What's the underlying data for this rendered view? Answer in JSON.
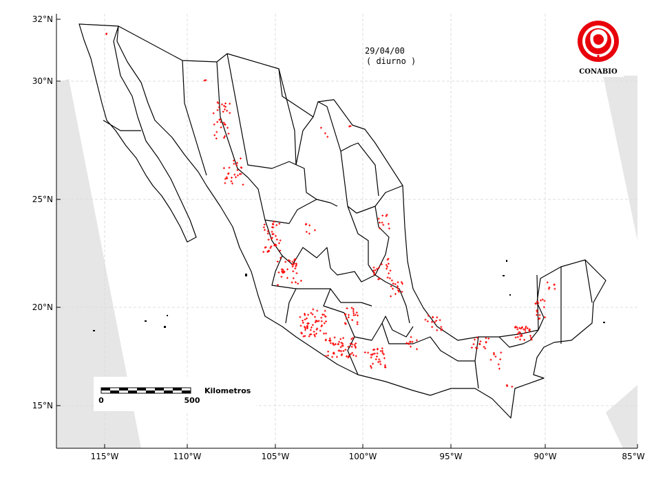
{
  "title": {
    "date": "29/04/00",
    "mode": "( diurno )"
  },
  "logo": {
    "text": "CONABIO",
    "color": "#e8000b"
  },
  "scalebar": {
    "label": "Kilometros",
    "start": "0",
    "end": "500"
  },
  "axes": {
    "x_ticks": [
      "115°W",
      "110°W",
      "105°W",
      "100°W",
      "95°W",
      "90°W",
      "85°W"
    ],
    "y_ticks": [
      "32°N",
      "30°N",
      "25°N",
      "20°N",
      "15°N"
    ]
  },
  "colors": {
    "hotspot": "#ff0000",
    "border": "#000000",
    "nodata": "#e6e6e6",
    "grid": "#dcdcdc"
  }
}
